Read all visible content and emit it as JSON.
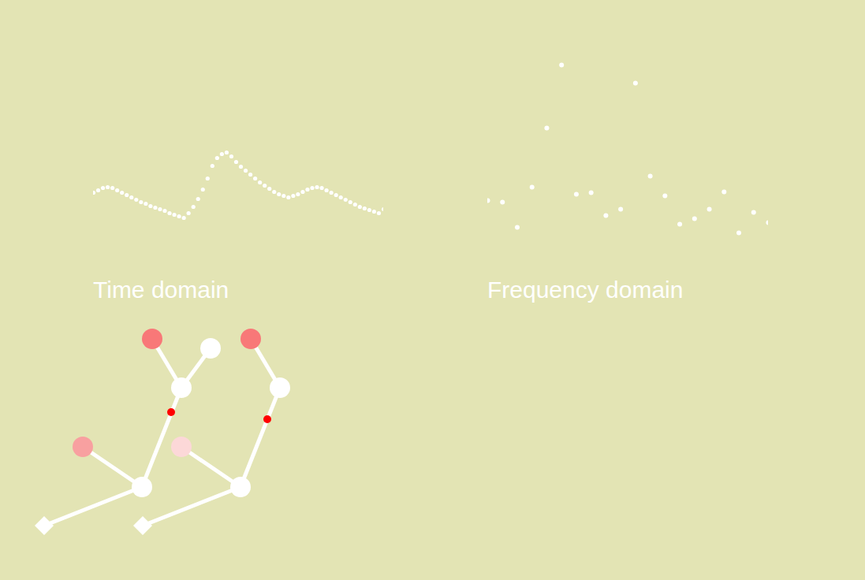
{
  "chart_data": [
    {
      "type": "scatter",
      "title": "Time domain",
      "color": "#ffffff",
      "tick_labels": false,
      "x": [
        0,
        1,
        2,
        3,
        4,
        5,
        6,
        7,
        8,
        9,
        10,
        11,
        12,
        13,
        14,
        15,
        16,
        17,
        18,
        19,
        20,
        21,
        22,
        23,
        24,
        25,
        26,
        27,
        28,
        29,
        30,
        31,
        32,
        33,
        34,
        35,
        36,
        37,
        38,
        39,
        40,
        41,
        42,
        43,
        44,
        45,
        46,
        47,
        48,
        49,
        50,
        51,
        52,
        53,
        54,
        55,
        56,
        57,
        58,
        59,
        60,
        61
      ],
      "values": [
        56,
        59,
        62,
        63,
        62,
        59,
        56,
        53,
        50,
        47,
        44,
        42,
        39,
        37,
        35,
        33,
        30,
        28,
        26,
        24,
        30,
        38,
        48,
        60,
        74,
        90,
        100,
        105,
        107,
        102,
        95,
        89,
        84,
        79,
        74,
        69,
        65,
        61,
        57,
        54,
        52,
        50,
        52,
        54,
        57,
        60,
        62,
        63,
        62,
        59,
        56,
        53,
        50,
        47,
        44,
        41,
        38,
        36,
        34,
        32,
        30,
        35
      ],
      "xlim": [
        0,
        61
      ],
      "ylim": [
        0,
        300
      ]
    },
    {
      "type": "scatter",
      "title": "Frequency domain",
      "color": "#ffffff",
      "tick_labels": false,
      "x": [
        0,
        1,
        2,
        3,
        4,
        5,
        6,
        7,
        8,
        9,
        10,
        11,
        12,
        13,
        14,
        15,
        16,
        17,
        18,
        19
      ],
      "values": [
        46,
        44,
        12,
        63,
        138,
        218,
        54,
        56,
        27,
        35,
        195,
        77,
        52,
        16,
        23,
        35,
        57,
        5,
        31,
        18
      ],
      "xlim": [
        0,
        19
      ],
      "ylim": [
        0,
        300
      ]
    }
  ]
}
